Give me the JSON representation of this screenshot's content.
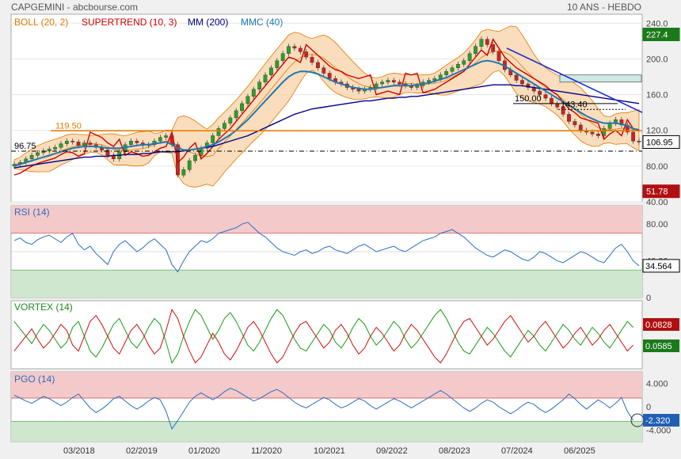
{
  "header": {
    "title": "CAPGEMINI - abcbourse.com",
    "period": "10 ANS - HEBDO"
  },
  "colors": {
    "boll": "#e07a00",
    "supertrend": "#d00000",
    "mm": "#00008b",
    "mmc": "#1f77b4",
    "rsi_line": "#2a6fc2",
    "vortex_pos": "#1a9a1a",
    "vortex_neg": "#cc1111",
    "pgo_line": "#2a6fc2",
    "zone_red": "#f4c9c9",
    "zone_green": "#cfe6cf"
  },
  "chart_data": [
    {
      "type": "line",
      "panel": "price",
      "legend": [
        "BOLL (20, 2)",
        "SUPERTREND (10, 3)",
        "MM (200)",
        "MMC (40)"
      ],
      "ylim": [
        40,
        250
      ],
      "y_ticks": [
        "240.0",
        "200.0",
        "160.0",
        "120.0",
        "80.00",
        "40.00"
      ],
      "x_ticks": [
        "03/2018",
        "02/2019",
        "01/2020",
        "11/2020",
        "10/2021",
        "09/2022",
        "08/2023",
        "07/2024",
        "06/2025"
      ],
      "levels": [
        {
          "label": "119.50",
          "value": 119.5,
          "color": "#e07a00"
        },
        {
          "label": "96.75",
          "value": 96.75,
          "color": "#000000"
        },
        {
          "label": "150.00",
          "value": 150.0,
          "color": "#000000"
        },
        {
          "label": "143.40",
          "value": 143.4,
          "color": "#000000"
        }
      ],
      "badges": [
        {
          "label": "227.4",
          "value": 227.4,
          "color": "#1a7a1a"
        },
        {
          "label": "106.95",
          "value": 106.95,
          "color": "#ffffff",
          "text_color": "#000000"
        },
        {
          "label": "51.78",
          "value": 51.78,
          "color": "#b01010"
        }
      ],
      "series": [
        {
          "name": "close",
          "values": [
            82,
            84,
            88,
            92,
            95,
            97,
            99,
            101,
            105,
            108,
            107,
            103,
            106,
            104,
            101,
            98,
            92,
            88,
            96,
            104,
            108,
            106,
            103,
            104,
            108,
            112,
            114,
            104,
            70,
            76,
            86,
            92,
            100,
            106,
            114,
            122,
            128,
            134,
            142,
            150,
            158,
            166,
            174,
            182,
            190,
            198,
            206,
            214,
            212,
            208,
            202,
            196,
            190,
            184,
            178,
            174,
            172,
            168,
            166,
            164,
            166,
            168,
            172,
            174,
            176,
            174,
            172,
            170,
            168,
            170,
            174,
            176,
            178,
            182,
            186,
            190,
            194,
            198,
            206,
            214,
            222,
            216,
            208,
            198,
            188,
            182,
            176,
            172,
            168,
            164,
            160,
            156,
            150,
            146,
            138,
            130,
            126,
            120,
            118,
            116,
            114,
            122,
            128,
            132,
            126,
            118,
            108,
            106.95
          ]
        },
        {
          "name": "MM (200)",
          "values": [
            78,
            79,
            80,
            81,
            82,
            83,
            84,
            85,
            86,
            87,
            88,
            89,
            90,
            90,
            91,
            91,
            91,
            92,
            92,
            93,
            93,
            93,
            94,
            94,
            95,
            96,
            96,
            96,
            96,
            97,
            98,
            99,
            100,
            101,
            102,
            104,
            106,
            108,
            110,
            112,
            114,
            117,
            120,
            123,
            126,
            129,
            132,
            135,
            138,
            140,
            142,
            144,
            145,
            146,
            147,
            148,
            149,
            150,
            151,
            152,
            153,
            153,
            154,
            155,
            156,
            156,
            157,
            157,
            158,
            158,
            159,
            160,
            161,
            162,
            163,
            164,
            165,
            166,
            167,
            168,
            169,
            170,
            171,
            171,
            171,
            171,
            170,
            170,
            169,
            168,
            167,
            166,
            165,
            164,
            163,
            162,
            161,
            160,
            159,
            158,
            157,
            156,
            155,
            154,
            153,
            152,
            151,
            150
          ]
        },
        {
          "name": "MMC (40)",
          "values": [
            80,
            82,
            84,
            86,
            88,
            90,
            92,
            94,
            96,
            98,
            100,
            101,
            102,
            102,
            102,
            101,
            100,
            100,
            100,
            101,
            102,
            103,
            104,
            104,
            105,
            106,
            107,
            104,
            100,
            98,
            98,
            99,
            100,
            102,
            104,
            107,
            111,
            115,
            120,
            126,
            132,
            139,
            146,
            153,
            160,
            167,
            174,
            180,
            184,
            186,
            186,
            185,
            183,
            180,
            177,
            174,
            172,
            170,
            168,
            167,
            166,
            166,
            167,
            168,
            169,
            170,
            170,
            170,
            170,
            171,
            172,
            173,
            175,
            177,
            179,
            182,
            185,
            188,
            191,
            194,
            197,
            198,
            197,
            195,
            192,
            188,
            184,
            180,
            176,
            172,
            168,
            164,
            160,
            156,
            152,
            148,
            144,
            140,
            136,
            133,
            130,
            128,
            128,
            128,
            127,
            125,
            122,
            120
          ]
        }
      ]
    },
    {
      "type": "line",
      "panel": "rsi",
      "legend": [
        "RSI (14)"
      ],
      "ylim": [
        0,
        100
      ],
      "y_ticks": [
        "80.00",
        "40.00",
        "0"
      ],
      "upper": 70,
      "lower": 30,
      "last": "34.564",
      "series": [
        {
          "name": "RSI (14)",
          "values": [
            62,
            65,
            60,
            58,
            63,
            66,
            68,
            64,
            60,
            66,
            70,
            58,
            52,
            56,
            48,
            42,
            36,
            50,
            58,
            62,
            56,
            50,
            54,
            60,
            64,
            58,
            52,
            36,
            28,
            40,
            50,
            56,
            62,
            60,
            64,
            70,
            72,
            74,
            76,
            80,
            82,
            76,
            70,
            66,
            60,
            54,
            50,
            48,
            46,
            50,
            52,
            48,
            50,
            54,
            56,
            52,
            50,
            48,
            52,
            56,
            58,
            54,
            50,
            52,
            54,
            56,
            52,
            50,
            54,
            58,
            62,
            64,
            66,
            70,
            72,
            74,
            70,
            66,
            60,
            54,
            50,
            46,
            44,
            48,
            52,
            50,
            46,
            42,
            40,
            44,
            50,
            48,
            44,
            40,
            38,
            42,
            46,
            50,
            48,
            44,
            40,
            38,
            46,
            54,
            58,
            50,
            40,
            34.564
          ]
        }
      ]
    },
    {
      "type": "line",
      "panel": "vortex",
      "legend": [
        "VORTEX (14)"
      ],
      "last_values": [
        "0.0828",
        "0.0585"
      ],
      "series": [
        {
          "name": "VI+",
          "values": [
            1.1,
            1.05,
            1.0,
            0.95,
            1.02,
            1.08,
            1.04,
            0.98,
            0.92,
            0.96,
            1.06,
            1.1,
            1.0,
            0.9,
            0.86,
            0.92,
            1.0,
            1.08,
            1.12,
            1.04,
            0.96,
            0.92,
            0.98,
            1.06,
            1.12,
            1.08,
            0.96,
            0.82,
            0.88,
            1.0,
            1.1,
            1.18,
            1.14,
            1.06,
            0.98,
            1.04,
            1.12,
            1.16,
            1.1,
            1.02,
            0.94,
            0.9,
            0.96,
            1.04,
            1.12,
            1.18,
            1.14,
            1.06,
            0.98,
            0.92,
            0.9,
            0.96,
            1.02,
            1.08,
            1.04,
            0.96,
            0.92,
            0.98,
            1.06,
            1.12,
            1.08,
            1.0,
            0.94,
            0.98,
            1.04,
            1.1,
            1.06,
            0.98,
            0.92,
            0.96,
            1.02,
            1.08,
            1.14,
            1.18,
            1.12,
            1.04,
            0.96,
            0.9,
            0.88,
            0.94,
            1.0,
            1.06,
            1.02,
            0.96,
            0.9,
            0.86,
            0.92,
            0.98,
            1.04,
            1.0,
            0.94,
            0.9,
            0.96,
            1.02,
            1.08,
            1.04,
            0.98,
            0.94,
            1.0,
            1.06,
            1.02,
            0.96,
            0.92,
            0.98,
            1.04,
            1.1,
            1.06
          ]
        },
        {
          "name": "VI-",
          "values": [
            0.9,
            0.95,
            1.0,
            1.05,
            0.98,
            0.92,
            0.96,
            1.02,
            1.08,
            1.04,
            0.94,
            0.9,
            1.0,
            1.1,
            1.14,
            1.08,
            1.0,
            0.92,
            0.88,
            0.96,
            1.04,
            1.08,
            1.02,
            0.94,
            0.88,
            0.92,
            1.04,
            1.18,
            1.12,
            1.0,
            0.9,
            0.82,
            0.86,
            0.94,
            1.02,
            0.96,
            0.88,
            0.84,
            0.9,
            0.98,
            1.06,
            1.1,
            1.04,
            0.96,
            0.88,
            0.82,
            0.86,
            0.94,
            1.02,
            1.08,
            1.1,
            1.04,
            0.98,
            0.92,
            0.96,
            1.04,
            1.08,
            1.02,
            0.94,
            0.88,
            0.92,
            1.0,
            1.06,
            1.02,
            0.96,
            0.9,
            0.94,
            1.02,
            1.08,
            1.04,
            0.98,
            0.92,
            0.86,
            0.82,
            0.88,
            0.96,
            1.04,
            1.1,
            1.12,
            1.06,
            1.0,
            0.94,
            0.98,
            1.04,
            1.1,
            1.14,
            1.08,
            1.02,
            0.96,
            1.0,
            1.06,
            1.1,
            1.04,
            0.98,
            0.92,
            0.96,
            1.02,
            1.06,
            1.0,
            0.94,
            0.98,
            1.04,
            1.08,
            1.02,
            0.96,
            0.9,
            0.94
          ]
        }
      ]
    },
    {
      "type": "line",
      "panel": "pgo",
      "legend": [
        "PGO (14)"
      ],
      "ylim": [
        -6,
        6
      ],
      "y_ticks": [
        "4.000",
        "0",
        "-4.000"
      ],
      "upper": 1.5,
      "lower": -2.5,
      "last": "-2.320",
      "series": [
        {
          "name": "PGO (14)",
          "values": [
            2.0,
            1.5,
            1.0,
            0.6,
            1.2,
            1.8,
            1.4,
            0.8,
            0.2,
            0.8,
            1.6,
            2.2,
            1.0,
            -0.2,
            -1.0,
            -0.4,
            0.4,
            1.4,
            1.8,
            1.0,
            0.2,
            -0.4,
            0.2,
            1.0,
            1.6,
            1.2,
            -0.8,
            -3.8,
            -2.4,
            -0.8,
            0.8,
            1.8,
            2.4,
            1.8,
            1.2,
            1.8,
            2.6,
            3.2,
            2.8,
            2.2,
            1.6,
            1.0,
            1.4,
            2.0,
            2.6,
            3.0,
            2.4,
            1.6,
            0.8,
            0.2,
            -0.2,
            0.4,
            1.0,
            1.6,
            1.2,
            0.4,
            -0.2,
            0.2,
            0.8,
            1.4,
            1.0,
            0.2,
            -0.4,
            0.2,
            0.8,
            1.4,
            1.0,
            0.4,
            -0.2,
            0.4,
            1.0,
            1.6,
            2.2,
            2.8,
            2.2,
            1.4,
            0.6,
            -0.2,
            -0.8,
            -0.2,
            0.6,
            1.2,
            0.8,
            0.0,
            -0.6,
            -1.2,
            -0.6,
            0.2,
            0.8,
            0.4,
            -0.4,
            -1.0,
            -0.4,
            0.4,
            1.2,
            2.2,
            1.4,
            0.4,
            -0.4,
            0.4,
            1.2,
            0.6,
            -0.2,
            0.6,
            1.6,
            -0.8,
            -2.32
          ]
        }
      ]
    }
  ]
}
